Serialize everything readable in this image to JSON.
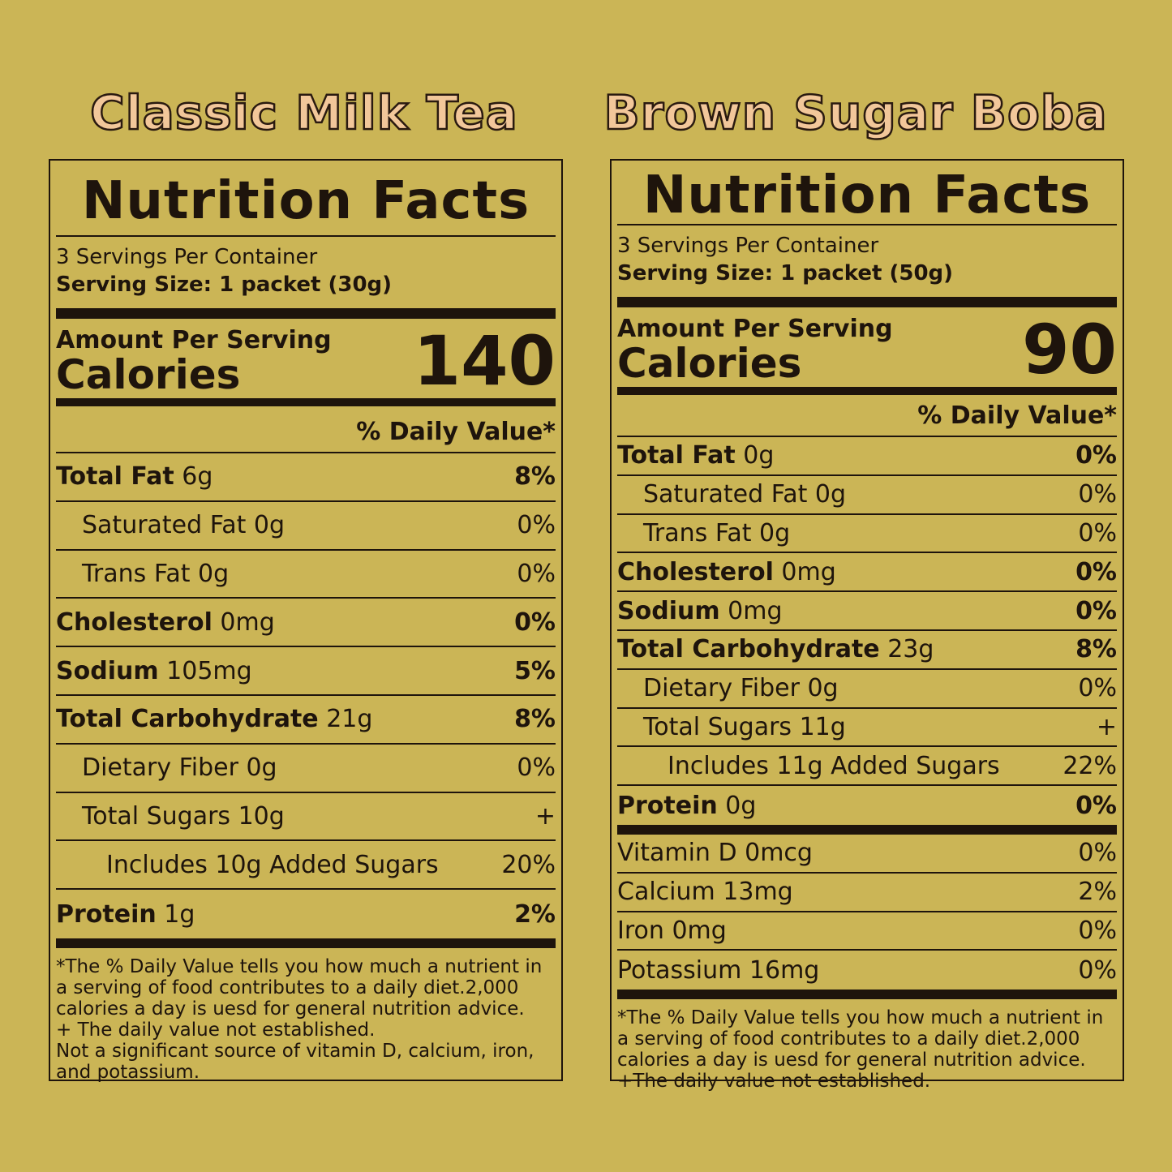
{
  "colors": {
    "background": "#cbb556",
    "title": "#f2c79a",
    "ink": "#1e140c"
  },
  "panels": [
    {
      "product": "Classic Milk Tea",
      "heading": "Nutrition Facts",
      "servings": "3 Servings Per Container",
      "serving_size": "Serving Size: 1 packet (30g)",
      "amount_label": "Amount Per Serving",
      "calories_label": "Calories",
      "calories": "140",
      "dv_header": "%  Daily Value*",
      "rows": [
        {
          "name": "Total Fat",
          "amount": "6g",
          "dv": "8%",
          "bold": true,
          "indent": 0
        },
        {
          "name": "Saturated Fat",
          "amount": "0g",
          "dv": "0%",
          "bold": false,
          "indent": 1
        },
        {
          "name": "Trans Fat",
          "amount": "0g",
          "dv": "0%",
          "bold": false,
          "indent": 1
        },
        {
          "name": "Cholesterol",
          "amount": "0mg",
          "dv": "0%",
          "bold": true,
          "indent": 0
        },
        {
          "name": "Sodium",
          "amount": "105mg",
          "dv": "5%",
          "bold": true,
          "indent": 0
        },
        {
          "name": "Total Carbohydrate",
          "amount": "21g",
          "dv": "8%",
          "bold": true,
          "indent": 0
        },
        {
          "name": "Dietary Fiber",
          "amount": "0g",
          "dv": "0%",
          "bold": false,
          "indent": 1
        },
        {
          "name": "Total Sugars",
          "amount": "10g",
          "dv": "+",
          "bold": false,
          "indent": 1
        },
        {
          "name": "Includes 10g Added Sugars",
          "amount": "",
          "dv": "20%",
          "bold": false,
          "indent": 2
        },
        {
          "name": "Protein",
          "amount": "1g",
          "dv": "2%",
          "bold": true,
          "indent": 0
        }
      ],
      "vitamins": [],
      "footnote": [
        "*The % Daily Value tells you how much a nutrient in a serving of food contributes to a daily diet.2,000 calories a day is uesd for general nutrition advice.",
        "+ The daily value not established.",
        "Not a significant source of vitamin D, calcium, iron, and potassium."
      ]
    },
    {
      "product": "Brown Sugar Boba",
      "heading": "Nutrition Facts",
      "servings": "3 Servings Per Container",
      "serving_size": "Serving Size: 1 packet (50g)",
      "amount_label": "Amount Per Serving",
      "calories_label": "Calories",
      "calories": "90",
      "dv_header": "%  Daily Value*",
      "rows": [
        {
          "name": "Total Fat",
          "amount": "0g",
          "dv": "0%",
          "bold": true,
          "indent": 0
        },
        {
          "name": "Saturated Fat",
          "amount": "0g",
          "dv": "0%",
          "bold": false,
          "indent": 1
        },
        {
          "name": "Trans Fat",
          "amount": "0g",
          "dv": "0%",
          "bold": false,
          "indent": 1
        },
        {
          "name": "Cholesterol",
          "amount": "0mg",
          "dv": "0%",
          "bold": true,
          "indent": 0
        },
        {
          "name": "Sodium",
          "amount": "0mg",
          "dv": "0%",
          "bold": true,
          "indent": 0
        },
        {
          "name": "Total Carbohydrate",
          "amount": "23g",
          "dv": "8%",
          "bold": true,
          "indent": 0
        },
        {
          "name": "Dietary Fiber",
          "amount": "0g",
          "dv": "0%",
          "bold": false,
          "indent": 1
        },
        {
          "name": "Total Sugars",
          "amount": "11g",
          "dv": "+",
          "bold": false,
          "indent": 1
        },
        {
          "name": "Includes 11g Added Sugars",
          "amount": "",
          "dv": "22%",
          "bold": false,
          "indent": 2
        },
        {
          "name": "Protein",
          "amount": "0g",
          "dv": "0%",
          "bold": true,
          "indent": 0
        }
      ],
      "vitamins": [
        {
          "name": "Vitamin D",
          "amount": "0mcg",
          "dv": "0%",
          "bold": false,
          "indent": 0
        },
        {
          "name": "Calcium",
          "amount": "13mg",
          "dv": "2%",
          "bold": false,
          "indent": 0
        },
        {
          "name": "Iron",
          "amount": "0mg",
          "dv": "0%",
          "bold": false,
          "indent": 0
        },
        {
          "name": "Potassium",
          "amount": "16mg",
          "dv": "0%",
          "bold": false,
          "indent": 0
        }
      ],
      "footnote": [
        "*The % Daily Value tells you how much a nutrient in a serving of food contributes to a daily diet.2,000 calories a day is uesd for general nutrition advice.",
        "+The daily value not established."
      ]
    }
  ]
}
